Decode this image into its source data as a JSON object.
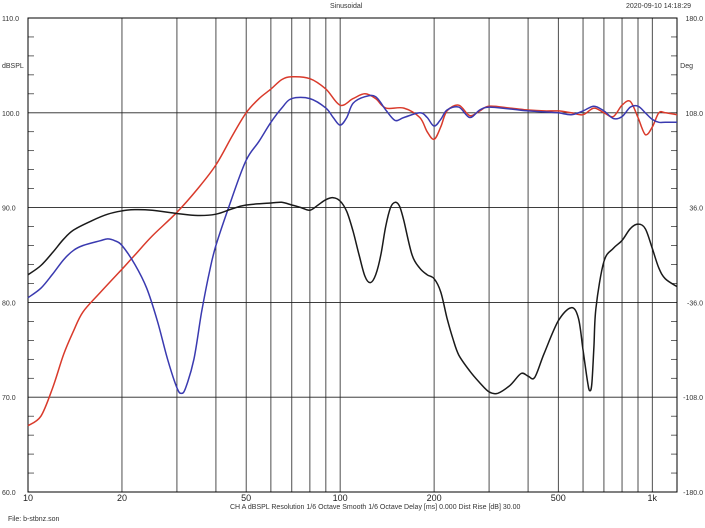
{
  "header": {
    "title": "Sinusoidal",
    "timestamp": "2020-09-10 14:18:29"
  },
  "footer": {
    "settings": "CH A   dBSPL   Resolution 1/6 Octave    Smooth 1/6 Octave    Delay [ms] 0.000    Dist Rise [dB] 30.00",
    "file": "File: b-stbnz.son"
  },
  "chart_data": {
    "type": "line",
    "title": "Sinusoidal",
    "x_scale": "log",
    "xlim": [
      10,
      1200
    ],
    "x_ticks": [
      {
        "value": 10,
        "label": "10"
      },
      {
        "value": 20,
        "label": "20"
      },
      {
        "value": 50,
        "label": "50"
      },
      {
        "value": 100,
        "label": "100"
      },
      {
        "value": 200,
        "label": "200"
      },
      {
        "value": 500,
        "label": "500"
      },
      {
        "value": 1000,
        "label": "1k"
      }
    ],
    "left_axis": {
      "label": "dBSPL",
      "ylim": [
        60,
        110
      ],
      "ticks": [
        "60.0",
        "70.0",
        "80.0",
        "90.0",
        "100.0",
        "110.0"
      ]
    },
    "right_axis": {
      "label": "Deg",
      "ylim": [
        -180,
        180
      ],
      "ticks": [
        "180.0",
        "108.0",
        "36.0",
        "-36.0",
        "-108.0",
        "-180.0"
      ]
    },
    "grid": true,
    "colors": {
      "red": "#d93a2b",
      "blue": "#3a3ab0",
      "black": "#1a1a1a"
    },
    "series": [
      {
        "color": "red",
        "axis": "left",
        "points": [
          [
            10,
            67
          ],
          [
            11,
            68
          ],
          [
            12,
            71
          ],
          [
            13,
            74.5
          ],
          [
            14,
            77
          ],
          [
            15,
            79
          ],
          [
            17,
            81
          ],
          [
            20,
            83.5
          ],
          [
            22,
            85
          ],
          [
            25,
            87
          ],
          [
            30,
            89.5
          ],
          [
            35,
            92
          ],
          [
            40,
            94.5
          ],
          [
            45,
            97.5
          ],
          [
            50,
            100
          ],
          [
            55,
            101.5
          ],
          [
            60,
            102.5
          ],
          [
            65,
            103.5
          ],
          [
            70,
            103.8
          ],
          [
            80,
            103.6
          ],
          [
            90,
            102.5
          ],
          [
            100,
            100.8
          ],
          [
            110,
            101.5
          ],
          [
            120,
            102
          ],
          [
            130,
            101.5
          ],
          [
            140,
            100.5
          ],
          [
            160,
            100.5
          ],
          [
            180,
            99.5
          ],
          [
            190,
            98
          ],
          [
            200,
            97.2
          ],
          [
            210,
            98.5
          ],
          [
            220,
            100.2
          ],
          [
            240,
            100.8
          ],
          [
            260,
            99.7
          ],
          [
            280,
            100.2
          ],
          [
            300,
            100.7
          ],
          [
            350,
            100.5
          ],
          [
            400,
            100.3
          ],
          [
            450,
            100.2
          ],
          [
            500,
            100.2
          ],
          [
            550,
            100
          ],
          [
            600,
            99.8
          ],
          [
            650,
            100.5
          ],
          [
            700,
            100
          ],
          [
            750,
            99.6
          ],
          [
            800,
            100.8
          ],
          [
            850,
            101.2
          ],
          [
            900,
            99.5
          ],
          [
            950,
            97.7
          ],
          [
            1000,
            98.5
          ],
          [
            1050,
            100
          ],
          [
            1100,
            100
          ],
          [
            1200,
            99.8
          ]
        ]
      },
      {
        "color": "blue",
        "axis": "left",
        "points": [
          [
            10,
            80.5
          ],
          [
            11,
            81.5
          ],
          [
            12,
            83
          ],
          [
            13,
            84.5
          ],
          [
            14,
            85.5
          ],
          [
            15,
            86
          ],
          [
            17,
            86.5
          ],
          [
            18,
            86.7
          ],
          [
            19,
            86.5
          ],
          [
            20,
            86
          ],
          [
            22,
            84
          ],
          [
            24,
            81.5
          ],
          [
            26,
            78
          ],
          [
            28,
            74
          ],
          [
            30,
            71
          ],
          [
            31,
            70.4
          ],
          [
            32,
            71
          ],
          [
            34,
            74
          ],
          [
            36,
            79
          ],
          [
            38,
            83
          ],
          [
            40,
            86
          ],
          [
            45,
            91
          ],
          [
            50,
            95
          ],
          [
            55,
            97
          ],
          [
            60,
            99
          ],
          [
            65,
            100.5
          ],
          [
            70,
            101.5
          ],
          [
            80,
            101.5
          ],
          [
            90,
            100.5
          ],
          [
            95,
            99.5
          ],
          [
            100,
            98.7
          ],
          [
            105,
            99.5
          ],
          [
            110,
            101
          ],
          [
            120,
            101.7
          ],
          [
            130,
            101.7
          ],
          [
            140,
            100.3
          ],
          [
            150,
            99.2
          ],
          [
            160,
            99.5
          ],
          [
            180,
            100
          ],
          [
            190,
            99.5
          ],
          [
            200,
            98.6
          ],
          [
            210,
            99.3
          ],
          [
            220,
            100.3
          ],
          [
            240,
            100.6
          ],
          [
            260,
            99.5
          ],
          [
            280,
            100.3
          ],
          [
            300,
            100.6
          ],
          [
            350,
            100.4
          ],
          [
            400,
            100.2
          ],
          [
            450,
            100.1
          ],
          [
            500,
            100
          ],
          [
            550,
            99.8
          ],
          [
            600,
            100.2
          ],
          [
            650,
            100.7
          ],
          [
            700,
            100.2
          ],
          [
            750,
            99.4
          ],
          [
            800,
            99.6
          ],
          [
            850,
            100.6
          ],
          [
            900,
            100.7
          ],
          [
            950,
            100
          ],
          [
            1000,
            99.3
          ],
          [
            1050,
            99
          ],
          [
            1100,
            99
          ],
          [
            1200,
            99
          ]
        ]
      },
      {
        "color": "black",
        "axis": "right",
        "points": [
          [
            10,
            -15
          ],
          [
            11,
            -8
          ],
          [
            12,
            2
          ],
          [
            13,
            12
          ],
          [
            14,
            19
          ],
          [
            16,
            26
          ],
          [
            18,
            31
          ],
          [
            20,
            33.5
          ],
          [
            22,
            34.5
          ],
          [
            25,
            34
          ],
          [
            30,
            31.5
          ],
          [
            35,
            30
          ],
          [
            40,
            31
          ],
          [
            45,
            35
          ],
          [
            50,
            38
          ],
          [
            60,
            39.5
          ],
          [
            65,
            40
          ],
          [
            70,
            38
          ],
          [
            75,
            36
          ],
          [
            80,
            34
          ],
          [
            85,
            38
          ],
          [
            90,
            42
          ],
          [
            95,
            43.5
          ],
          [
            100,
            41
          ],
          [
            105,
            33
          ],
          [
            110,
            18
          ],
          [
            115,
            0
          ],
          [
            120,
            -16
          ],
          [
            125,
            -21
          ],
          [
            130,
            -15
          ],
          [
            135,
            0
          ],
          [
            140,
            22
          ],
          [
            145,
            36
          ],
          [
            150,
            40
          ],
          [
            155,
            37
          ],
          [
            160,
            26
          ],
          [
            170,
            0
          ],
          [
            180,
            -10
          ],
          [
            190,
            -15
          ],
          [
            200,
            -18
          ],
          [
            210,
            -28
          ],
          [
            220,
            -48
          ],
          [
            230,
            -64
          ],
          [
            240,
            -76
          ],
          [
            260,
            -88
          ],
          [
            280,
            -97
          ],
          [
            300,
            -104
          ],
          [
            320,
            -105
          ],
          [
            350,
            -99
          ],
          [
            380,
            -90
          ],
          [
            400,
            -92
          ],
          [
            420,
            -93
          ],
          [
            450,
            -75
          ],
          [
            500,
            -50
          ],
          [
            550,
            -40
          ],
          [
            580,
            -48
          ],
          [
            600,
            -72
          ],
          [
            620,
            -96
          ],
          [
            630,
            -103
          ],
          [
            640,
            -98
          ],
          [
            650,
            -70
          ],
          [
            660,
            -40
          ],
          [
            700,
            -5
          ],
          [
            750,
            5
          ],
          [
            800,
            11
          ],
          [
            850,
            20
          ],
          [
            900,
            23.5
          ],
          [
            950,
            20
          ],
          [
            1000,
            5
          ],
          [
            1050,
            -10
          ],
          [
            1100,
            -18
          ],
          [
            1200,
            -24
          ]
        ]
      }
    ]
  }
}
